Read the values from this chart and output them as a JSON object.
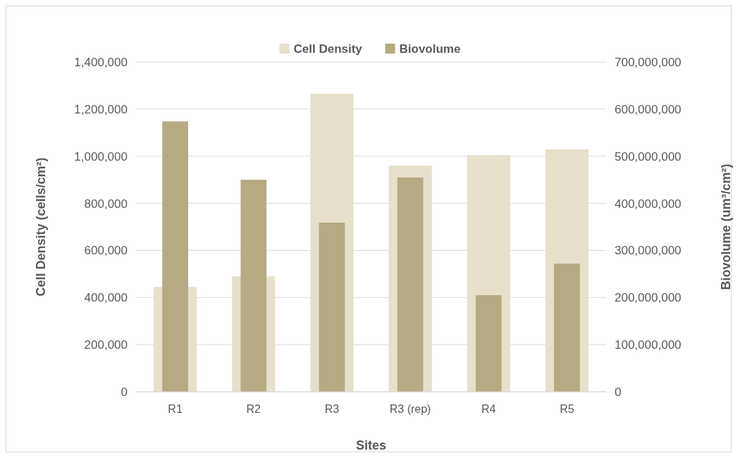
{
  "chart_data": {
    "type": "bar",
    "xlabel": "Sites",
    "ylabel": "Cell Density (cells/cm²)",
    "y2label": "Biovolume (um³/cm²)",
    "categories": [
      "R1",
      "R2",
      "R3",
      "R3 (rep)",
      "R4",
      "R5"
    ],
    "series": [
      {
        "name": "Cell Density",
        "color": "#e6e0cc",
        "values": [
          445000,
          490000,
          1265000,
          960000,
          1005000,
          1029000
        ]
      },
      {
        "name": "Biovolume",
        "color": "#b5aa82",
        "axis": "y2",
        "values": [
          574000000,
          450000000,
          359000000,
          455000000,
          205000000,
          272000000
        ]
      }
    ],
    "ylim": [
      0,
      1400000
    ],
    "yticks": [
      {
        "value": 0,
        "label": "0"
      },
      {
        "value": 200000,
        "label": "200,000"
      },
      {
        "value": 400000,
        "label": "400,000"
      },
      {
        "value": 600000,
        "label": "600,000"
      },
      {
        "value": 800000,
        "label": "800,000"
      },
      {
        "value": 1000000,
        "label": "1,000,000"
      },
      {
        "value": 1200000,
        "label": "1,200,000"
      },
      {
        "value": 1400000,
        "label": "1,400,000"
      }
    ],
    "y2lim": [
      0,
      700000000
    ],
    "y2ticks": [
      {
        "value": 0,
        "label": "0"
      },
      {
        "value": 100000000,
        "label": "100,000,000"
      },
      {
        "value": 200000000,
        "label": "200,000,000"
      },
      {
        "value": 300000000,
        "label": "300,000,000"
      },
      {
        "value": 400000000,
        "label": "400,000,000"
      },
      {
        "value": 500000000,
        "label": "500,000,000"
      },
      {
        "value": 600000000,
        "label": "600,000,000"
      },
      {
        "value": 700000000,
        "label": "700,000,000"
      }
    ],
    "grid": "y",
    "legend": "top"
  }
}
